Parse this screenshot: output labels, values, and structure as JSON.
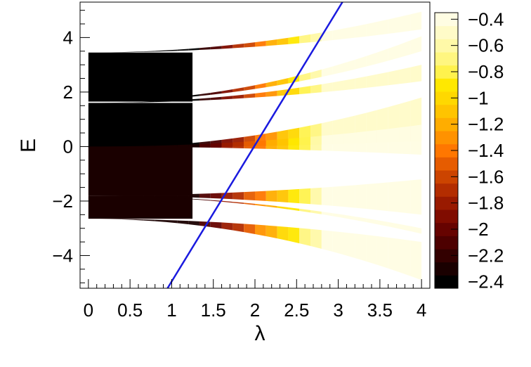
{
  "chart_data": {
    "type": "heatmap",
    "title": "",
    "xlabel": "λ",
    "ylabel": "E",
    "xlim": [
      -0.1,
      4.1
    ],
    "ylim": [
      -5.2,
      5.3
    ],
    "x_ticks": [
      "0",
      "0.5",
      "1",
      "1.5",
      "2",
      "2.5",
      "3",
      "3.5",
      "4"
    ],
    "x_tick_values": [
      0,
      0.5,
      1,
      1.5,
      2,
      2.5,
      3,
      3.5,
      4
    ],
    "y_ticks": [
      "−4",
      "−2",
      "0",
      "2",
      "4"
    ],
    "y_tick_values": [
      -4,
      -2,
      0,
      2,
      4
    ],
    "colorbar": {
      "range": [
        -2.45,
        -0.35
      ],
      "ticks": [
        "−0.4",
        "−0.6",
        "−0.8",
        "−1",
        "−1.2",
        "−1.4",
        "−1.6",
        "−1.8",
        "−2",
        "−2.2",
        "−2.4"
      ],
      "tick_values": [
        -0.4,
        -0.6,
        -0.8,
        -1,
        -1.2,
        -1.4,
        -1.6,
        -1.8,
        -2,
        -2.2,
        -2.4
      ],
      "colors": [
        "#000000",
        "#1a0000",
        "#330000",
        "#4d0000",
        "#660300",
        "#800c00",
        "#991a00",
        "#b32d00",
        "#cc4400",
        "#e65c00",
        "#ff7700",
        "#ff9200",
        "#ffad00",
        "#ffc400",
        "#ffd800",
        "#ffe800",
        "#fff24d",
        "#fff680",
        "#fff9a8",
        "#fffbc8",
        "#fffde3"
      ]
    },
    "bands": [
      {
        "name": "band-1",
        "start": [
          3.45,
          1.65
        ],
        "end_upper": [
          4.95,
          4.3
        ],
        "end_lower": [
          4.05,
          3.5
        ],
        "color_start": -2.4,
        "color_end": -0.4
      },
      {
        "name": "band-2",
        "start": [
          1.6,
          -0.05
        ],
        "end_upper": [
          3.0,
          2.4
        ],
        "end_lower": [
          1.8,
          0.2
        ],
        "color_start": -2.4,
        "color_end": -0.5
      },
      {
        "name": "band-3",
        "start": [
          0.0,
          -1.8
        ],
        "end_upper": [
          -0.3,
          0.8
        ],
        "end_lower": [
          -1.2,
          -2.5
        ],
        "color_start": -2.3,
        "color_end": -0.45
      },
      {
        "name": "band-4",
        "start": [
          -1.8,
          -2.65
        ],
        "end_upper": [
          -3.0,
          -3.2
        ],
        "end_lower": [
          -3.5,
          -4.9
        ],
        "color_start": -2.3,
        "color_end": -0.4
      }
    ],
    "line": {
      "color": "#1a1adf",
      "x": [
        0.95,
        3.05
      ],
      "y": [
        -5.2,
        5.3
      ]
    }
  }
}
